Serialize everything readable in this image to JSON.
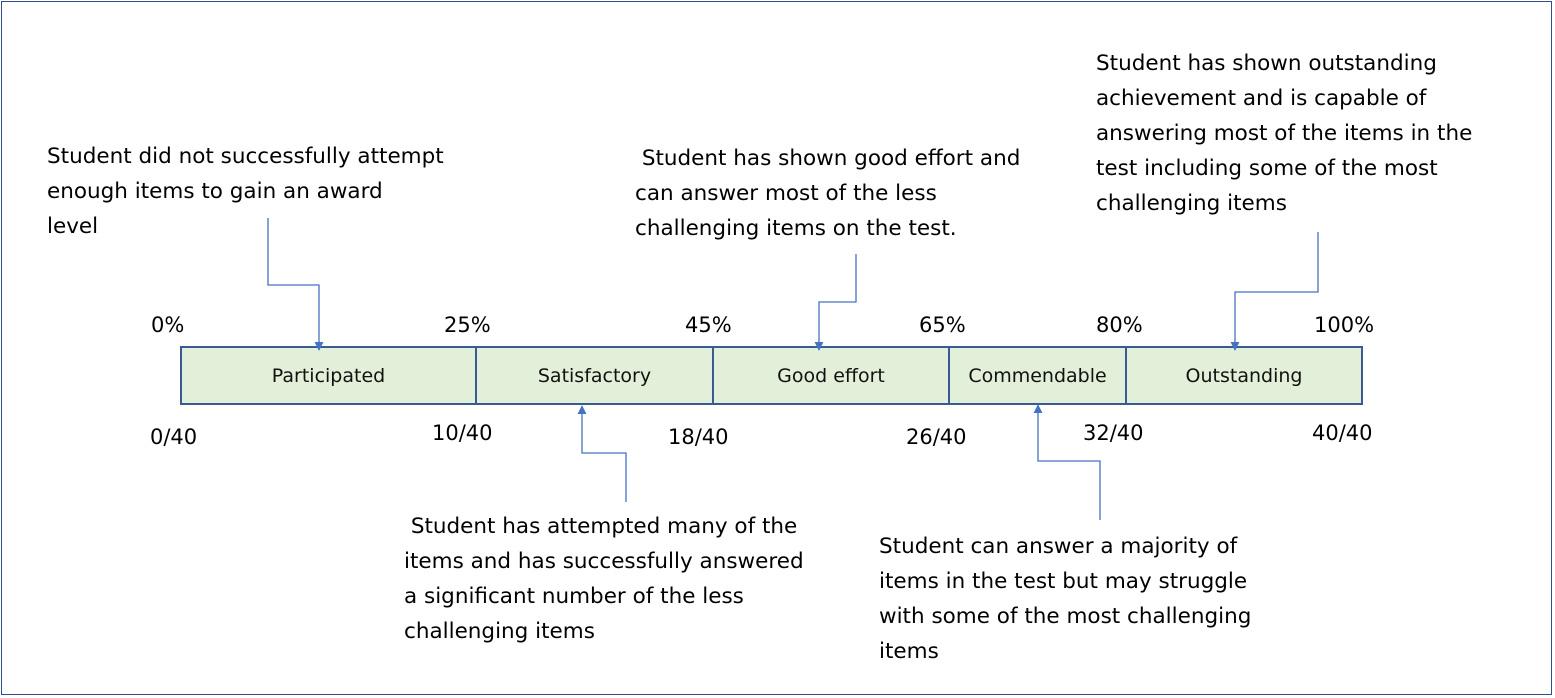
{
  "percent_labels": [
    "0%",
    "25%",
    "45%",
    "65%",
    "80%",
    "100%"
  ],
  "score_labels": [
    "0/40",
    "10/40",
    "18/40",
    "26/40",
    "32/40",
    "40/40"
  ],
  "levels": [
    "Participated",
    "Satisfactory",
    "Good effort",
    "Commendable",
    "Outstanding"
  ],
  "descriptions": {
    "participated": "Student did not successfully attempt\nenough items to gain an award\nlevel",
    "satisfactory": " Student has attempted many of the\nitems and has successfully answered\na significant number of the less\nchallenging items",
    "good_effort": " Student has shown good effort and\ncan answer most of the less\nchallenging items on the test.",
    "commendable": "Student can answer a majority of\nitems in the test but may struggle\nwith some of the most challenging\nitems",
    "outstanding": "Student has shown outstanding\nachievement and is capable of\nanswering most of the items in the\ntest including some of the most\nchallenging items"
  },
  "colors": {
    "bar_fill": "#E2EFD9",
    "bar_border": "#3A5A94",
    "connector": "#4472C4",
    "frame": "#2F4F8F"
  }
}
